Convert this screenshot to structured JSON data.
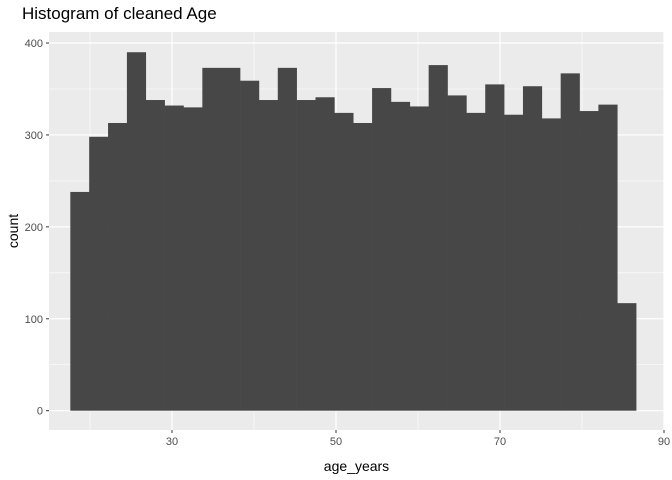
{
  "chart_data": {
    "type": "bar",
    "title": "Histogram of cleaned Age",
    "xlabel": "age_years",
    "ylabel": "count",
    "xlim": [
      15,
      90
    ],
    "ylim": [
      -21,
      412
    ],
    "x_ticks": [
      30,
      50,
      70,
      90
    ],
    "x_tick_labels": [
      "30",
      "50",
      "70",
      "90"
    ],
    "y_ticks": [
      0,
      100,
      200,
      300,
      400
    ],
    "y_tick_labels": [
      "0",
      "100",
      "200",
      "300",
      "400"
    ],
    "grid": true,
    "bins": [
      {
        "x0": 17.6,
        "x1": 19.9,
        "count": 238
      },
      {
        "x0": 19.9,
        "x1": 22.2,
        "count": 298
      },
      {
        "x0": 22.2,
        "x1": 24.5,
        "count": 313
      },
      {
        "x0": 24.5,
        "x1": 26.8,
        "count": 390
      },
      {
        "x0": 26.8,
        "x1": 29.1,
        "count": 338
      },
      {
        "x0": 29.1,
        "x1": 31.4,
        "count": 332
      },
      {
        "x0": 31.4,
        "x1": 33.7,
        "count": 330
      },
      {
        "x0": 33.7,
        "x1": 36.0,
        "count": 373
      },
      {
        "x0": 36.0,
        "x1": 38.3,
        "count": 373
      },
      {
        "x0": 38.3,
        "x1": 40.6,
        "count": 359
      },
      {
        "x0": 40.6,
        "x1": 42.9,
        "count": 338
      },
      {
        "x0": 42.9,
        "x1": 45.2,
        "count": 373
      },
      {
        "x0": 45.2,
        "x1": 47.5,
        "count": 338
      },
      {
        "x0": 47.5,
        "x1": 49.8,
        "count": 341
      },
      {
        "x0": 49.8,
        "x1": 52.1,
        "count": 324
      },
      {
        "x0": 52.1,
        "x1": 54.4,
        "count": 313
      },
      {
        "x0": 54.4,
        "x1": 56.7,
        "count": 351
      },
      {
        "x0": 56.7,
        "x1": 59.0,
        "count": 336
      },
      {
        "x0": 59.0,
        "x1": 61.3,
        "count": 331
      },
      {
        "x0": 61.3,
        "x1": 63.6,
        "count": 376
      },
      {
        "x0": 63.6,
        "x1": 65.9,
        "count": 343
      },
      {
        "x0": 65.9,
        "x1": 68.2,
        "count": 324
      },
      {
        "x0": 68.2,
        "x1": 70.5,
        "count": 355
      },
      {
        "x0": 70.5,
        "x1": 72.8,
        "count": 322
      },
      {
        "x0": 72.8,
        "x1": 75.1,
        "count": 353
      },
      {
        "x0": 75.1,
        "x1": 77.4,
        "count": 318
      },
      {
        "x0": 77.4,
        "x1": 79.7,
        "count": 367
      },
      {
        "x0": 79.7,
        "x1": 82.0,
        "count": 326
      },
      {
        "x0": 82.0,
        "x1": 84.3,
        "count": 333
      },
      {
        "x0": 84.3,
        "x1": 86.6,
        "count": 117
      }
    ],
    "colors": {
      "panel_background": "#ebebeb",
      "grid_major": "#ffffff",
      "bar_fill": "#474747",
      "tick_text": "#4d4d4d",
      "tick_mark": "#333333"
    }
  }
}
